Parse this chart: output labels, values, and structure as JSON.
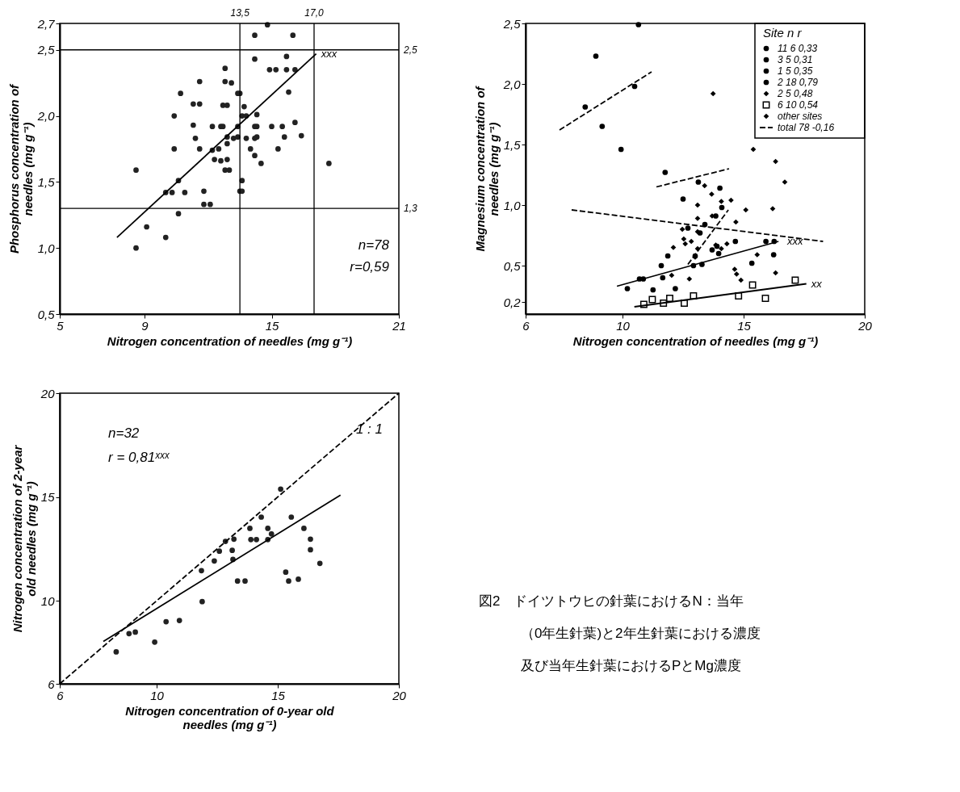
{
  "chart_data": [
    {
      "type": "scatter",
      "xlabel": "Nitrogen concentration of needles (mg g⁻¹)",
      "ylabel": "Phosphorus concentration of\nneedles (mg g⁻¹)",
      "xlim": [
        5,
        21
      ],
      "ylim": [
        0.5,
        2.7
      ],
      "xticks": [
        5,
        9,
        15,
        21
      ],
      "yticks": [
        {
          "value": 0.5,
          "label": "0,5"
        },
        {
          "value": 1.0,
          "label": "1,0"
        },
        {
          "value": 1.5,
          "label": "1,5"
        },
        {
          "value": 2.0,
          "label": "2,0"
        },
        {
          "value": 2.5,
          "label": "2,5"
        },
        {
          "value": 2.7,
          "label": "2,7"
        }
      ],
      "grid": false,
      "legend": false,
      "series": [
        {
          "color": "#222222",
          "marker": "circle",
          "x": [
            8.6,
            8.6,
            9.1,
            10.0,
            10.6,
            10.3,
            10.0,
            10.9,
            10.6,
            10.4,
            10.4,
            10.7,
            11.3,
            11.6,
            11.6,
            11.3,
            11.4,
            11.6,
            11.8,
            11.8,
            12.1,
            12.2,
            12.2,
            12.3,
            12.5,
            12.6,
            12.6,
            12.7,
            12.8,
            12.8,
            12.7,
            12.9,
            12.9,
            12.9,
            12.9,
            12.8,
            13.0,
            13.1,
            13.4,
            13.5,
            13.4,
            13.2,
            13.4,
            13.6,
            13.5,
            13.6,
            13.7,
            13.6,
            13.8,
            13.8,
            14.0,
            14.2,
            14.2,
            14.2,
            14.3,
            14.2,
            14.3,
            14.3,
            14.2,
            14.5,
            14.8,
            14.9,
            15.2,
            15.0,
            15.3,
            15.5,
            15.6,
            15.7,
            15.7,
            15.8,
            16.0,
            16.1,
            16.1,
            16.4,
            17.7
          ],
          "values": [
            1.59,
            1.0,
            1.16,
            1.08,
            1.26,
            1.42,
            1.42,
            1.42,
            1.51,
            1.75,
            2.0,
            2.17,
            2.09,
            2.09,
            2.26,
            1.93,
            1.83,
            1.75,
            1.43,
            1.33,
            1.33,
            1.92,
            1.74,
            1.67,
            1.75,
            1.66,
            1.92,
            1.92,
            2.36,
            2.26,
            2.08,
            2.08,
            1.84,
            1.79,
            1.67,
            1.59,
            1.59,
            2.25,
            2.17,
            2.17,
            1.92,
            1.83,
            1.84,
            1.51,
            1.43,
            1.43,
            2.07,
            2.0,
            2.0,
            1.83,
            1.75,
            2.43,
            2.61,
            1.92,
            1.92,
            1.83,
            1.84,
            2.01,
            1.7,
            1.64,
            2.69,
            2.35,
            2.35,
            1.92,
            1.75,
            1.92,
            1.84,
            2.45,
            2.35,
            2.18,
            2.61,
            2.35,
            1.95,
            1.85,
            1.64
          ]
        },
        {
          "type": "line",
          "color": "#000000",
          "line_style": "solid",
          "x": [
            7.7,
            17.1
          ],
          "values": [
            1.08,
            2.47
          ]
        }
      ],
      "ref_lines": [
        {
          "axis": "x",
          "value": 13.5,
          "label": "13,5"
        },
        {
          "axis": "x",
          "value": 17.0,
          "label": "17,0"
        },
        {
          "axis": "y",
          "value": 2.5,
          "label": "2,5"
        },
        {
          "axis": "y",
          "value": 1.3,
          "label": "1,3"
        }
      ],
      "annotations": [
        {
          "text": "xxx",
          "x": 17.1,
          "y": 2.47
        },
        "n=78",
        "r=0,59"
      ]
    },
    {
      "type": "scatter",
      "xlabel": "Nitrogen concentration of needles (mg g⁻¹)",
      "ylabel": "Magnesium concentration of\nneedles (mg g⁻¹)",
      "xlim": [
        6,
        20
      ],
      "ylim": [
        0.1,
        2.5
      ],
      "xticks": [
        6,
        10,
        15,
        20
      ],
      "yticks": [
        {
          "value": 0.2,
          "label": "0,2"
        },
        {
          "value": 0.5,
          "label": "0,5"
        },
        {
          "value": 1.0,
          "label": "1,0"
        },
        {
          "value": 1.5,
          "label": "1,5"
        },
        {
          "value": 2.0,
          "label": "2,0"
        },
        {
          "value": 2.5,
          "label": "2,5"
        }
      ],
      "grid": false,
      "legend": "top right",
      "legend_title": "Site   n   r",
      "series": [
        {
          "name": "11   6   0,33",
          "color": "#000000",
          "marker": "circle",
          "x": [
            8.46,
            8.9,
            9.16,
            9.94,
            10.66,
            10.5
          ],
          "values": [
            1.81,
            2.23,
            1.65,
            1.46,
            2.49,
            1.98
          ]
        },
        {
          "name": "3   5   0,31",
          "color": "#000000",
          "marker": "circle",
          "x": [
            11.76,
            13.13,
            14.02,
            12.5,
            14.1
          ],
          "values": [
            1.27,
            1.19,
            1.14,
            1.05,
            0.98
          ]
        },
        {
          "name": "1   5   0,35",
          "color": "#000000",
          "marker": "circle",
          "x": [
            12.7,
            13.4,
            13.85,
            13.2,
            13.9
          ],
          "values": [
            0.81,
            0.84,
            0.91,
            0.77,
            0.66
          ]
        },
        {
          "name": "2   18   0,79",
          "color": "#000000",
          "marker": "circle",
          "x": [
            10.2,
            10.7,
            10.86,
            11.26,
            11.6,
            11.66,
            11.87,
            12.18,
            12.93,
            13.28,
            13.0,
            13.7,
            13.97,
            14.66,
            15.34,
            15.92,
            16.24,
            16.26
          ],
          "values": [
            0.31,
            0.39,
            0.39,
            0.3,
            0.5,
            0.4,
            0.58,
            0.31,
            0.5,
            0.51,
            0.58,
            0.63,
            0.6,
            0.7,
            0.52,
            0.7,
            0.59,
            0.7
          ]
        },
        {
          "name": "2   5   0,48",
          "color": "#000000",
          "marker": "diamond",
          "x": [
            13.74,
            15.4,
            16.32,
            16.7,
            16.2
          ],
          "values": [
            1.92,
            1.46,
            1.36,
            1.19,
            0.97
          ]
        },
        {
          "name": "6   10   0,54",
          "color": "#000000",
          "marker": "square",
          "x": [
            10.88,
            11.23,
            11.69,
            11.95,
            12.55,
            12.93,
            14.79,
            15.37,
            15.9,
            17.13
          ],
          "values": [
            0.18,
            0.22,
            0.19,
            0.23,
            0.19,
            0.25,
            0.25,
            0.34,
            0.23,
            0.38
          ]
        },
        {
          "name": "other sites",
          "color": "#000000",
          "marker": "diamond",
          "x": [
            14.08,
            14.48,
            15.09,
            13.39,
            13.68,
            13.1,
            13.7,
            13.1,
            14.68,
            12.47,
            13.1,
            12.53,
            12.84,
            12.59,
            12.1,
            13.1,
            13.85,
            14.31,
            14.08,
            13.0,
            15.56,
            14.63,
            14.71,
            14.89,
            12.03,
            12.76,
            16.32
          ],
          "values": [
            1.03,
            1.04,
            0.96,
            1.16,
            1.09,
            1.0,
            0.91,
            0.89,
            0.86,
            0.8,
            0.78,
            0.72,
            0.7,
            0.68,
            0.65,
            0.64,
            0.67,
            0.68,
            0.64,
            0.57,
            0.59,
            0.47,
            0.43,
            0.38,
            0.42,
            0.39,
            0.44
          ]
        },
        {
          "type": "line",
          "name": "total   78   -0,16",
          "color": "#000000",
          "line_style": "dashed",
          "x": [
            7.9,
            18.28
          ],
          "values": [
            0.96,
            0.7
          ]
        },
        {
          "type": "line",
          "color": "#000000",
          "line_style": "dashed",
          "x": [
            7.4,
            11.2
          ],
          "values": [
            1.62,
            2.1
          ]
        },
        {
          "type": "line",
          "color": "#000000",
          "line_style": "dashed",
          "x": [
            11.4,
            14.4
          ],
          "values": [
            1.15,
            1.3
          ]
        },
        {
          "type": "line",
          "color": "#000000",
          "line_style": "dashed",
          "x": [
            12.7,
            14.37
          ],
          "values": [
            0.51,
            0.96
          ]
        },
        {
          "type": "line",
          "color": "#000000",
          "line_style": "solid",
          "x": [
            9.77,
            16.44
          ],
          "values": [
            0.33,
            0.7
          ]
        },
        {
          "type": "line",
          "color": "#000000",
          "line_style": "solid",
          "x": [
            10.49,
            17.59
          ],
          "values": [
            0.16,
            0.35
          ]
        }
      ],
      "annotations": [
        {
          "text": "xxx",
          "x": 16.6,
          "y": 0.7
        },
        {
          "text": "xx",
          "x": 17.59,
          "y": 0.35
        }
      ]
    },
    {
      "type": "scatter",
      "xlabel": "Nitrogen concentration of 0-year old\nneedles (mg g⁻¹)",
      "ylabel": "Nitrogen concentration of 2-year\nold needles (mg g⁻¹)",
      "xlim": [
        6,
        20
      ],
      "ylim": [
        6,
        20
      ],
      "xticks": [
        6,
        10,
        15,
        20
      ],
      "yticks": [
        6,
        10,
        15,
        20
      ],
      "grid": false,
      "legend": false,
      "series": [
        {
          "color": "#222222",
          "marker": "circle",
          "x": [
            8.33,
            8.86,
            9.12,
            9.92,
            10.39,
            10.94,
            11.85,
            11.88,
            12.38,
            12.59,
            12.84,
            13.12,
            13.19,
            13.15,
            13.34,
            13.65,
            13.85,
            13.89,
            14.12,
            14.32,
            14.59,
            14.59,
            14.74,
            15.12,
            15.33,
            15.45,
            15.56,
            15.85,
            16.08,
            16.35,
            16.35,
            16.74
          ],
          "values": [
            7.54,
            8.42,
            8.49,
            8.01,
            8.99,
            9.05,
            11.45,
            9.96,
            11.92,
            12.39,
            12.86,
            12.43,
            12.97,
            11.99,
            10.95,
            10.95,
            13.49,
            12.95,
            12.95,
            14.03,
            13.49,
            12.95,
            13.22,
            15.38,
            11.38,
            10.95,
            14.03,
            11.04,
            13.49,
            12.97,
            12.46,
            11.8
          ]
        },
        {
          "type": "line",
          "color": "#000000",
          "line_style": "solid",
          "x": [
            7.8,
            17.59
          ],
          "values": [
            8.04,
            15.09
          ]
        },
        {
          "type": "line",
          "color": "#000000",
          "line_style": "dashed",
          "x": [
            6,
            20
          ],
          "values": [
            6,
            20
          ]
        }
      ],
      "annotations": [
        "1 : 1",
        "n=32",
        "r = 0,81ˣˣˣ"
      ]
    },
    {
      "type": "other",
      "annotations": [
        "図2　ドイツトウヒの針葉におけるN：当年",
        "（0年生針葉)と2年生針葉における濃度",
        "及び当年生針葉におけるPとMg濃度"
      ]
    }
  ]
}
